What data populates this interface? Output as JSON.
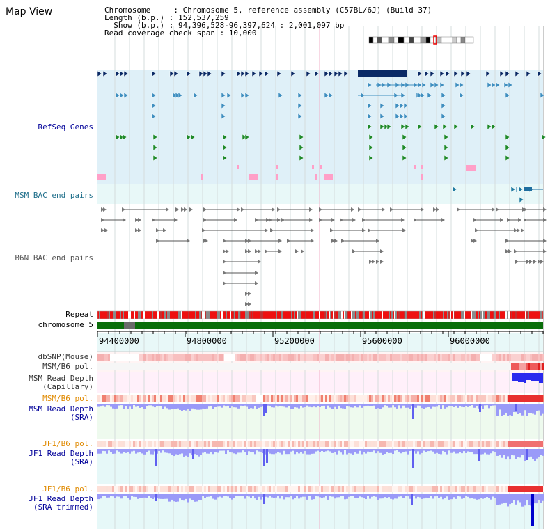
{
  "title": "Map View",
  "info": {
    "chromosome": "Chromosome     : Chromosome 5, reference assembly (C57BL/6J) (Build 37)",
    "length": "Length (b.p.) : 152,537,259",
    "show": "  Show (b.p.) : 94,396,528-96,397,624 : 2,001,097 bp",
    "coverage": "Read coverage check span : 10,000"
  },
  "tracks": {
    "refseq": "RefSeq Genes",
    "msm_bac": "MSM BAC end pairs",
    "b6n_bac": "B6N BAC end pairs",
    "repeat": "Repeat",
    "chromosome": "chromosome 5",
    "dbsnp": "dbSNP(Mouse)",
    "msm_b6_pol_1": "MSM/B6 pol.",
    "msm_depth_cap": "MSM Read Depth\n(Capillary)",
    "msm_b6_pol_2": "MSM/B6 pol.",
    "msm_depth_sra": "MSM Read Depth\n(SRA)",
    "jf1_b6_pol_1": "JF1/B6 pol.",
    "jf1_depth_sra": "JF1 Read Depth\n(SRA)",
    "jf1_b6_pol_2": "JF1/B6 pol.",
    "jf1_depth_trim": "JF1 Read Depth\n(SRA trimmed)"
  },
  "axis": {
    "ticks": [
      "94400000",
      "94800000",
      "95200000",
      "95600000",
      "96000000"
    ]
  },
  "colors": {
    "refseq_bg": "#dff0f8",
    "bac_bg": "#e8f8f8",
    "gene_dark": "#0a2a66",
    "gene_mid": "#3f8fc0",
    "gene_green": "#1f8a2a",
    "chrom_green": "#0a6e0a",
    "pink": "#ffa0c8",
    "depth_blue": "#6060f0",
    "msm_label": "#1e6e8a",
    "blue_label": "#000099",
    "orange_label": "#e08a00"
  }
}
